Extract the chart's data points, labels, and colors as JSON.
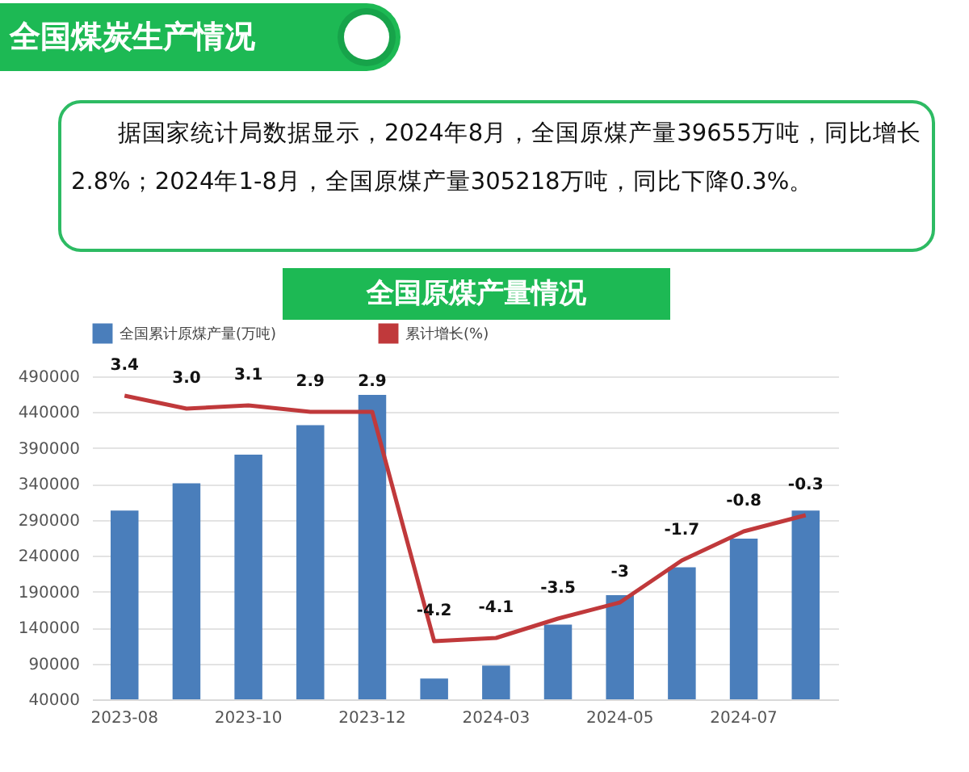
{
  "chart_data": {
    "type": "bar",
    "title": "全国原煤产量情况",
    "annotations": [
      "全国煤炭生产情况",
      "据国家统计局数据显示，2024年8月，全国原煤产量39655万吨，同比增长2.8%；2024年1-8月，全国原煤产量305218万吨，同比下降0.3%。"
    ],
    "categories": [
      "2023-08",
      null,
      "2023-10",
      null,
      "2023-12",
      null,
      "2024-03",
      null,
      "2024-05",
      null,
      "2024-07",
      null
    ],
    "series": [
      {
        "name": "全国累计原煤产量(万吨)",
        "color": "#4a7ebb",
        "values": [
          303000,
          341000,
          381000,
          422000,
          464000,
          69000,
          87000,
          144000,
          185000,
          224000,
          264000,
          303000
        ]
      },
      {
        "name": "累计增长(%)",
        "type": "line",
        "axis": "y2",
        "color": "#c0393b",
        "values": [
          3.4,
          3.0,
          3.1,
          2.9,
          2.9,
          -4.2,
          -4.1,
          -3.5,
          -3,
          -1.7,
          -0.8,
          -0.3
        ],
        "value_labels": [
          "3.4",
          "3.0",
          "3.1",
          "2.9",
          "2.9",
          "-4.2",
          "-4.1",
          "-3.5",
          "-3",
          "-1.7",
          "-0.8",
          "-0.3"
        ]
      }
    ],
    "ylim": [
      40000,
      490000
    ],
    "yticks": [
      40000,
      90000,
      140000,
      190000,
      240000,
      290000,
      340000,
      390000,
      440000,
      490000
    ],
    "y2lim": [
      -6,
      4
    ],
    "grid": "y",
    "legend": "top"
  }
}
